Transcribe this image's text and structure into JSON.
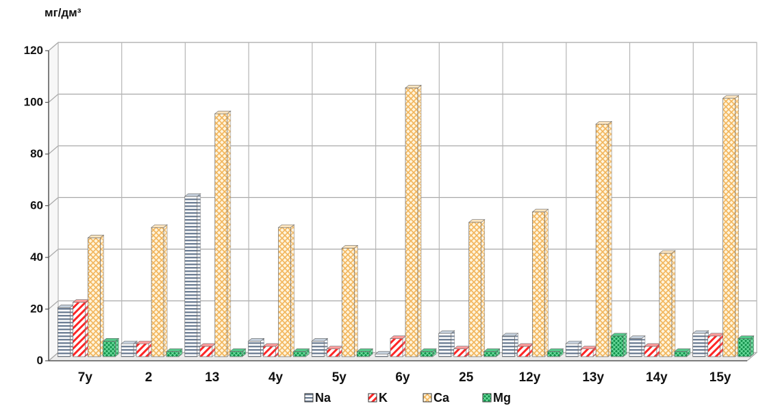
{
  "chart_data": {
    "type": "bar",
    "ylabel": "мг/дм³",
    "ylim": [
      0,
      120
    ],
    "yticks": [
      0,
      20,
      40,
      60,
      80,
      100,
      120
    ],
    "grid": true,
    "legend_position": "bottom",
    "categories": [
      "7у",
      "2",
      "13",
      "4у",
      "5у",
      "6у",
      "25",
      "12у",
      "13у",
      "14у",
      "15у"
    ],
    "series": [
      {
        "name": "Na",
        "color": "#8a9bb0",
        "values": [
          19,
          5,
          62,
          6,
          6,
          1,
          9,
          8,
          5,
          7,
          9
        ]
      },
      {
        "name": "K",
        "color": "#ff2a2a",
        "values": [
          21,
          5,
          4,
          4,
          3,
          7,
          3,
          4,
          3,
          4,
          8
        ]
      },
      {
        "name": "Ca",
        "color": "#f0a040",
        "values": [
          46,
          50,
          94,
          50,
          42,
          104,
          52,
          56,
          90,
          40,
          100
        ]
      },
      {
        "name": "Mg",
        "color": "#20b060",
        "values": [
          6,
          2,
          2,
          2,
          2,
          2,
          2,
          2,
          8,
          2,
          7
        ]
      }
    ]
  }
}
